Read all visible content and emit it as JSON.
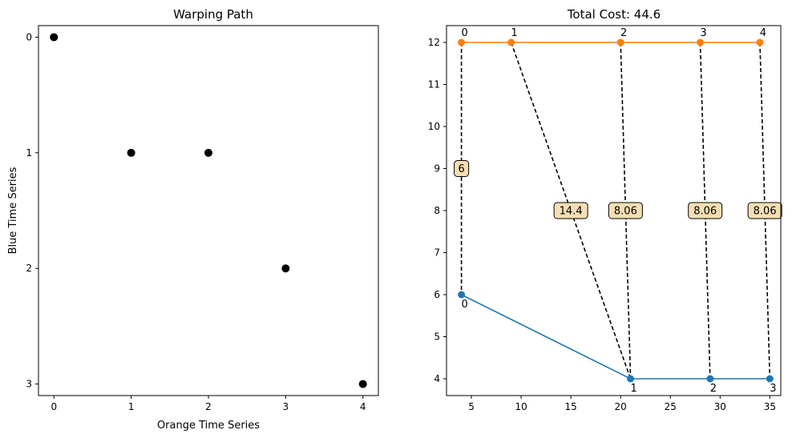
{
  "chart_data": [
    {
      "type": "scatter",
      "title": "Warping Path",
      "xlabel": "Orange Time Series",
      "ylabel": "Blue Time Series",
      "xlim": [
        -0.2,
        4.2
      ],
      "ylim": [
        3.1,
        -0.1
      ],
      "y_inverted": true,
      "x_ticks": [
        0,
        1,
        2,
        3,
        4
      ],
      "y_ticks": [
        0,
        1,
        2,
        3
      ],
      "points": [
        {
          "x": 0,
          "y": 0
        },
        {
          "x": 1,
          "y": 1
        },
        {
          "x": 2,
          "y": 1
        },
        {
          "x": 3,
          "y": 2
        },
        {
          "x": 4,
          "y": 3
        }
      ],
      "marker_color": "#000000"
    },
    {
      "type": "line",
      "title": "Total Cost: 44.6",
      "xlabel": "",
      "ylabel": "",
      "xlim": [
        2.5,
        36.1
      ],
      "ylim": [
        3.6,
        12.4
      ],
      "x_ticks": [
        5,
        10,
        15,
        20,
        25,
        30,
        35
      ],
      "y_ticks": [
        4,
        5,
        6,
        7,
        8,
        9,
        10,
        11,
        12
      ],
      "series": [
        {
          "name": "",
          "color": "#ff7f0e",
          "points": [
            {
              "x": 4,
              "y": 12,
              "label": "0"
            },
            {
              "x": 9,
              "y": 12,
              "label": "1"
            },
            {
              "x": 20,
              "y": 12,
              "label": "2"
            },
            {
              "x": 28,
              "y": 12,
              "label": "3"
            },
            {
              "x": 34,
              "y": 12,
              "label": "4"
            }
          ]
        },
        {
          "name": "",
          "color": "#1f77b4",
          "points": [
            {
              "x": 4,
              "y": 6,
              "label": "0"
            },
            {
              "x": 21,
              "y": 4,
              "label": "1"
            },
            {
              "x": 29,
              "y": 4,
              "label": "2"
            },
            {
              "x": 35,
              "y": 4,
              "label": "3"
            }
          ]
        }
      ],
      "connections": [
        {
          "from": [
            4,
            12
          ],
          "to": [
            4,
            6
          ],
          "cost": "6"
        },
        {
          "from": [
            9,
            12
          ],
          "to": [
            21,
            4
          ],
          "cost": "14.4"
        },
        {
          "from": [
            20,
            12
          ],
          "to": [
            21,
            4
          ],
          "cost": "8.06"
        },
        {
          "from": [
            28,
            12
          ],
          "to": [
            29,
            4
          ],
          "cost": "8.06"
        },
        {
          "from": [
            34,
            12
          ],
          "to": [
            35,
            4
          ],
          "cost": "8.06"
        }
      ]
    }
  ]
}
